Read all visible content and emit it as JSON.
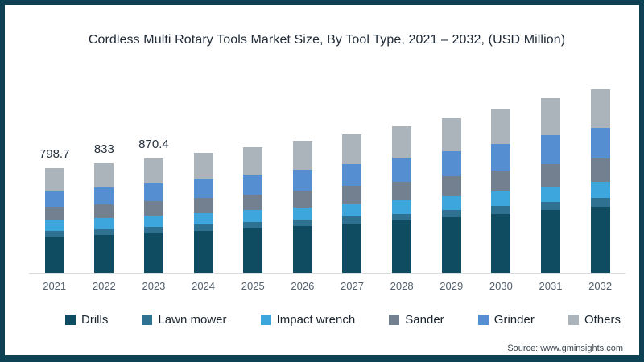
{
  "frame": {
    "border_color": "#0d4254",
    "background": "#ffffff"
  },
  "axis": {
    "line_color": "#d9dde0",
    "tick_label_color": "#53606c"
  },
  "source": {
    "text": "Source: www.gminsights.com"
  },
  "chart_data": {
    "type": "bar",
    "stacked": true,
    "title": "Cordless Multi Rotary Tools Market Size, By Tool Type, 2021 – 2032, (USD Million)",
    "categories": [
      "2021",
      "2022",
      "2023",
      "2024",
      "2025",
      "2026",
      "2027",
      "2028",
      "2029",
      "2030",
      "2031",
      "2032"
    ],
    "series": [
      {
        "name": "Drills",
        "color": "#104c61",
        "values": [
          276.4,
          289.4,
          303.5,
          321.0,
          336.3,
          354.6,
          374.7,
          396.4,
          421.2,
          447.8,
          478.3,
          505.4
        ]
      },
      {
        "name": "Lawn mower",
        "color": "#2e7191",
        "values": [
          40.7,
          42.3,
          43.9,
          46.0,
          47.8,
          49.9,
          52.2,
          54.7,
          57.6,
          60.7,
          64.2,
          67.2
        ]
      },
      {
        "name": "Impact wrench",
        "color": "#3da6dc",
        "values": [
          81.5,
          83.8,
          86.3,
          89.5,
          92.0,
          95.2,
          98.7,
          102.4,
          106.6,
          111.1,
          116.3,
          120.4
        ]
      },
      {
        "name": "Sander",
        "color": "#73808f",
        "values": [
          102.2,
          106.6,
          111.3,
          117.1,
          122.2,
          128.2,
          134.8,
          142.0,
          150.2,
          159.0,
          169.0,
          177.8
        ]
      },
      {
        "name": "Grinder",
        "color": "#568ed2",
        "values": [
          123.0,
          129.3,
          136.1,
          144.5,
          151.9,
          160.7,
          170.4,
          180.9,
          192.9,
          205.8,
          220.5,
          233.8
        ]
      },
      {
        "name": "Others",
        "color": "#abb4bb",
        "values": [
          174.9,
          181.8,
          189.4,
          198.8,
          206.8,
          216.4,
          227.1,
          238.5,
          251.6,
          265.6,
          281.6,
          295.4
        ]
      }
    ],
    "totals_labeled": {
      "2021": "798.7",
      "2022": "833",
      "2023": "870.4"
    },
    "ylim": [
      0,
      1450
    ],
    "grid": false,
    "legend_position": "bottom"
  }
}
